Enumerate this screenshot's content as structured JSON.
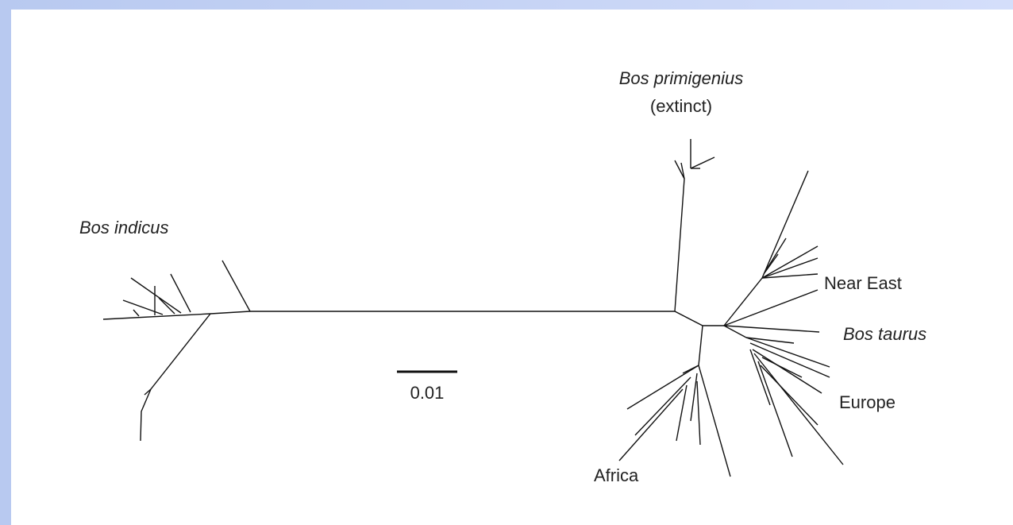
{
  "labels": {
    "bos_primigenius": "Bos primigenius",
    "extinct": "(extinct)",
    "bos_indicus": "Bos indicus",
    "near_east": "Near East",
    "bos_taurus": "Bos taurus",
    "europe": "Europe",
    "africa": "Africa"
  },
  "scale_bar": {
    "label": "0.01"
  }
}
